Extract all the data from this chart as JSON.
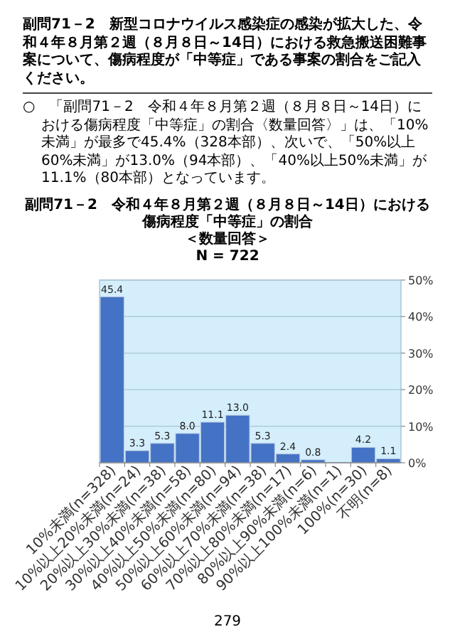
{
  "chart_data": {
    "type": "bar",
    "title": "副問71－2　令和４年８月第２週（８月８日～14日）における傷病程度「中等症」の割合",
    "subtitle": "＜数量回答＞",
    "annotations": [
      "副問71－2　新型コロナウイルス感染症の感染が拡大した、令和４年８月第２週（８月８日～14日）における救急搬送困難事案について、傷病程度が「中等症」である事案の割合をご記入ください。",
      "○　「副問71－2　令和４年８月第２週（８月８日～14日）における傷病程度「中等症」の割合〈数量回答〉」は、「10%未満」が最多で45.4%（328本部）、次いで、「50%以上60%未満」が13.0%（94本部）、「40%以上50%未満」が11.1%（80本部）となっています。",
      "N = 722",
      "279"
    ],
    "categories": [
      "10%未満(n=328)",
      "10%以上20%未満(n=24)",
      "20%以上30%未満(n=38)",
      "30%以上40%未満(n=58)",
      "40%以上50%未満(n=80)",
      "50%以上60%未満(n=94)",
      "60%以上70%未満(n=38)",
      "70%以上80%未満(n=17)",
      "80%以上90%未満(n=6)",
      "90%以上100%未満(n=1)",
      "100%(n=30)",
      "不明(n=8)"
    ],
    "values": [
      45.4,
      3.3,
      5.3,
      8.0,
      11.1,
      13.0,
      5.3,
      2.4,
      0.8,
      0.1,
      4.2,
      1.1
    ],
    "value_labels": [
      "45.4",
      "3.3",
      "5.3",
      "8.0",
      "11.1",
      "13.0",
      "5.3",
      "2.4",
      "0.8",
      null,
      "4.2",
      "1.1"
    ],
    "color": "#4472c4",
    "ylim": [
      0,
      50
    ],
    "yticks": [
      {
        "value": 0,
        "label": "0%"
      },
      {
        "value": 10,
        "label": "10%"
      },
      {
        "value": 20,
        "label": "20%"
      },
      {
        "value": 30,
        "label": "30%"
      },
      {
        "value": 40,
        "label": "40%"
      },
      {
        "value": 50,
        "label": "50%"
      }
    ],
    "grid": "y"
  }
}
